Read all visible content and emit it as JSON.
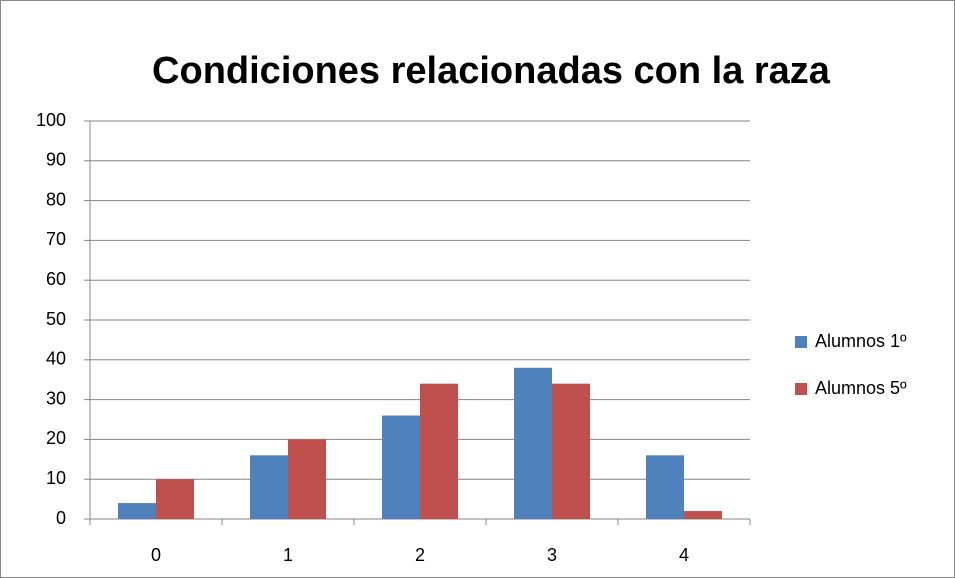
{
  "chart_data": {
    "type": "bar",
    "title": "Condiciones relacionadas con la raza",
    "categories": [
      "0",
      "1",
      "2",
      "3",
      "4"
    ],
    "series": [
      {
        "name": "Alumnos 1º",
        "color": "#4f81bd",
        "values": [
          4,
          16,
          26,
          38,
          16
        ]
      },
      {
        "name": "Alumnos 5º",
        "color": "#c0504d",
        "values": [
          10,
          20,
          34,
          34,
          2
        ]
      }
    ],
    "ylim": [
      0,
      100
    ],
    "yticks": [
      0,
      10,
      20,
      30,
      40,
      50,
      60,
      70,
      80,
      90,
      100
    ],
    "grid": true,
    "legend": "right"
  }
}
